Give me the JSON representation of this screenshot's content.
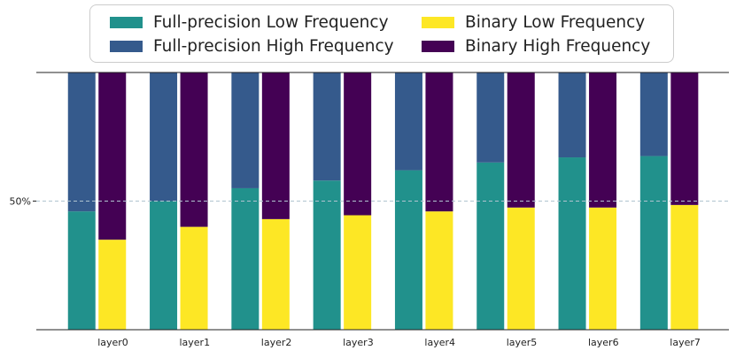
{
  "chart_data": {
    "type": "bar",
    "stacked": true,
    "grouped": true,
    "categories": [
      "layer0",
      "layer1",
      "layer2",
      "layer3",
      "layer4",
      "layer5",
      "layer6",
      "layer7"
    ],
    "series": [
      {
        "name": "Full-precision Low Frequency",
        "group": "Full-precision",
        "color": "#21918c",
        "values": [
          46,
          50,
          55,
          58,
          62,
          65,
          67,
          67.5
        ]
      },
      {
        "name": "Full-precision High Frequency",
        "group": "Full-precision",
        "color": "#355a8c",
        "values": [
          54,
          50,
          45,
          42,
          38,
          35,
          33,
          32.5
        ]
      },
      {
        "name": "Binary Low Frequency",
        "group": "Binary",
        "color": "#fde725",
        "values": [
          35,
          40,
          43,
          44.5,
          46,
          47.5,
          47.5,
          48.5
        ]
      },
      {
        "name": "Binary High Frequency",
        "group": "Binary",
        "color": "#440154",
        "values": [
          65,
          60,
          57,
          55.5,
          54,
          52.5,
          52.5,
          51.5
        ]
      }
    ],
    "legend_order": [
      "Full-precision Low Frequency",
      "Binary Low Frequency",
      "Full-precision High Frequency",
      "Binary High Frequency"
    ],
    "legend_position": "top",
    "ylim": [
      0,
      100
    ],
    "yticks": [
      {
        "value": 50,
        "label": "50%"
      }
    ],
    "title": "",
    "xlabel": "",
    "ylabel": "",
    "grid": "horizontal dashed at 50%"
  }
}
